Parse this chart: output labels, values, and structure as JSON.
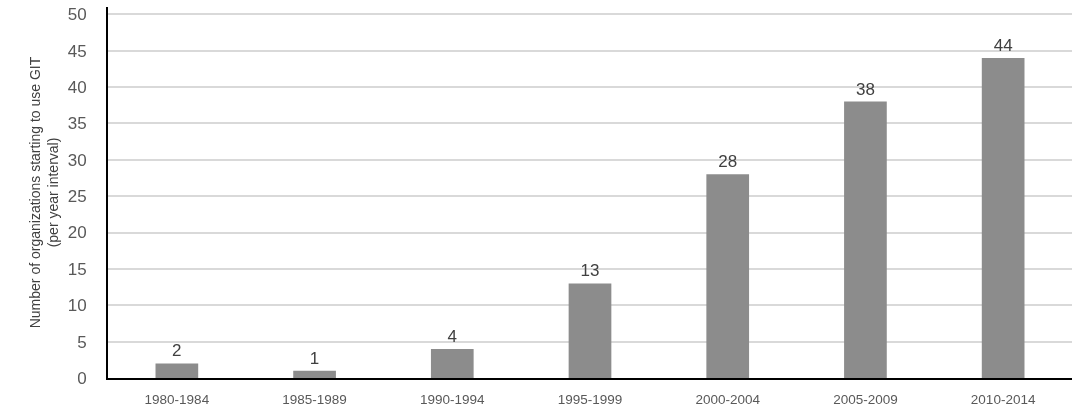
{
  "chart_data": {
    "type": "bar",
    "ylabel": "Number of organizations starting to use GIT\n(per year interval)",
    "categories": [
      "1980-1984",
      "1985-1989",
      "1990-1994",
      "1995-1999",
      "2000-2004",
      "2005-2009",
      "2010-2014"
    ],
    "values": [
      2,
      1,
      4,
      13,
      28,
      38,
      44
    ],
    "color": "#8c8c8c",
    "data_labels": true,
    "ylim": [
      0,
      51
    ],
    "yticks": [
      0,
      5,
      10,
      15,
      20,
      25,
      30,
      35,
      40,
      45,
      50
    ],
    "grid": "y"
  }
}
